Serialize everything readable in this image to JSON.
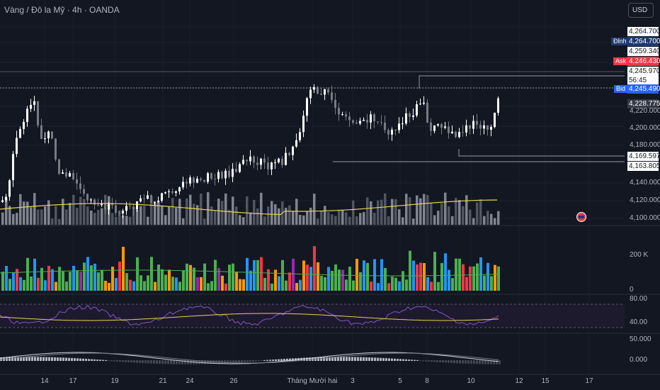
{
  "header": {
    "symbol_title": "Vàng / Đô la Mỹ · 4h · OANDA",
    "currency": "USD"
  },
  "price_labels": {
    "high_value": "4,264.700",
    "dinh_tag": "Đỉnh",
    "dinh_value": "4,264.700",
    "level_1": "4,259.340",
    "ask_tag": "Ask",
    "ask_value": "4,246.430",
    "last_value": "4,245.970",
    "countdown": "56:45",
    "bid_tag": "Bid",
    "bid_value": "4,245.490",
    "level_2": "4,228.775",
    "level_3": "4,169.597",
    "level_4": "4,163.805"
  },
  "price_axis": [
    "4,220.000",
    "4,200.000",
    "4,180.000",
    "4,140.000",
    "4,120.000",
    "4,100.000"
  ],
  "volume_axis": [
    "200 K",
    "0"
  ],
  "rsi_axis": [
    "80.00",
    "40.00"
  ],
  "macd_axis": [
    "50.000",
    "0.000"
  ],
  "time_axis": [
    "14",
    "17",
    "19",
    "21",
    "24",
    "26",
    "Tháng Mười hai",
    "3",
    "5",
    "8",
    "10",
    "12",
    "15",
    "17"
  ],
  "colors": {
    "background": "#131722",
    "up": "#ffffff",
    "down": "#787b86",
    "ask": "#f23645",
    "bid": "#2962ff",
    "dinh": "#1e3a6e",
    "ma": "#e5d34b",
    "vol_green": "#4caf50",
    "vol_blue": "#2196f3",
    "vol_orange": "#ff9800",
    "vol_red": "#f23645",
    "vol_purple": "#9c27b0",
    "rsi": "#7e57c2"
  },
  "icons": {
    "event_flag": "us-flag-icon"
  }
}
